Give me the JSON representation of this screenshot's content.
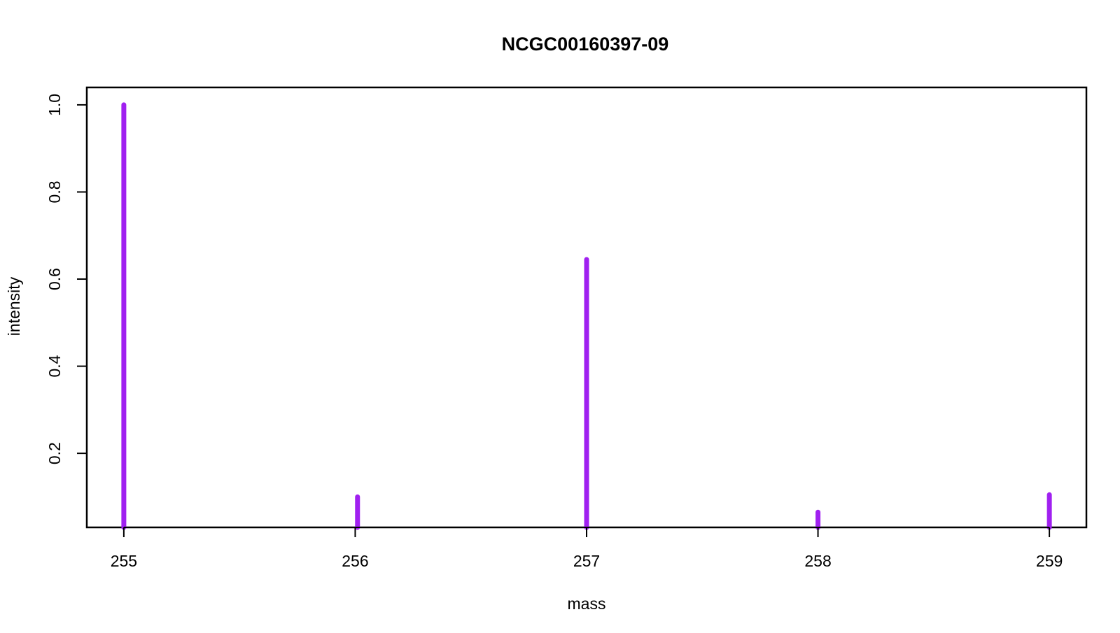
{
  "chart_data": {
    "type": "bar",
    "title": "NCGC00160397-09",
    "xlabel": "mass",
    "ylabel": "intensity",
    "xlim": [
      254.84,
      259.16
    ],
    "ylim": [
      0.03,
      1.04
    ],
    "x_ticks": [
      "255",
      "256",
      "257",
      "258",
      "259"
    ],
    "y_ticks": [
      "0.2",
      "0.4",
      "0.6",
      "0.8",
      "1.0"
    ],
    "grid": false,
    "legend": "none",
    "series": [
      {
        "color": "#a020f0",
        "points": [
          {
            "x": 255.0,
            "y": 1.0
          },
          {
            "x": 256.01,
            "y": 0.1
          },
          {
            "x": 257.0,
            "y": 0.645
          },
          {
            "x": 258.0,
            "y": 0.065
          },
          {
            "x": 259.0,
            "y": 0.105
          }
        ]
      }
    ]
  }
}
